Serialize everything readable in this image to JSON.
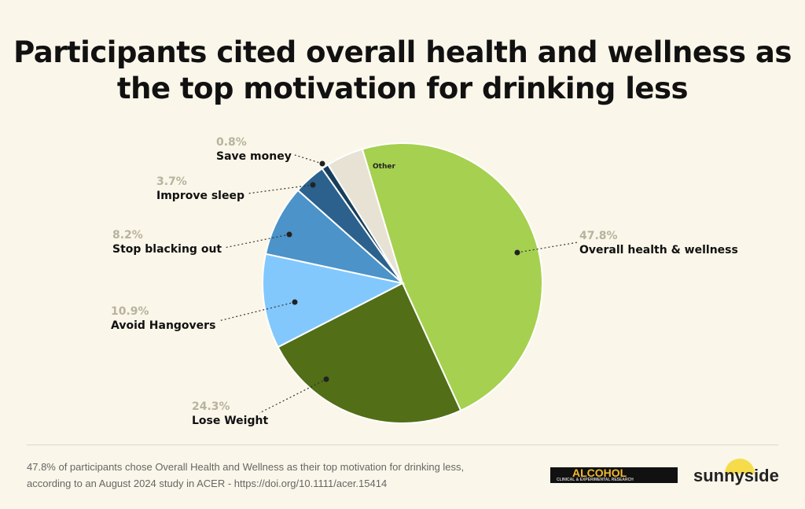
{
  "chart_data": {
    "type": "pie",
    "title": "Participants cited overall health and wellness as the top motivation for drinking less",
    "slices": [
      {
        "label": "Overall health & wellness",
        "value": 47.8,
        "pct": "47.8%",
        "color": "#a6d04f"
      },
      {
        "label": "Lose Weight",
        "value": 24.3,
        "pct": "24.3%",
        "color": "#526e17"
      },
      {
        "label": "Avoid Hangovers",
        "value": 10.9,
        "pct": "10.9%",
        "color": "#82c8fc"
      },
      {
        "label": "Stop blacking out",
        "value": 8.2,
        "pct": "8.2%",
        "color": "#4b93c9"
      },
      {
        "label": "Improve sleep",
        "value": 3.7,
        "pct": "3.7%",
        "color": "#2b618c"
      },
      {
        "label": "Save money",
        "value": 0.8,
        "pct": "0.8%",
        "color": "#173f5c"
      },
      {
        "label": "Other",
        "value": 4.3,
        "color": "#e7e2d3"
      }
    ]
  },
  "footer": {
    "line1": "47.8% of participants chose Overall Health and Wellness as their top motivation for drinking less,",
    "line2": "according to an August 2024 study in ACER - https://doi.org/10.1111/acer.15414"
  },
  "logos": {
    "acer": "ALCOHOL",
    "acer_sub": "CLINICAL & EXPERIMENTAL RESEARCH",
    "brand": "sunnyside"
  }
}
